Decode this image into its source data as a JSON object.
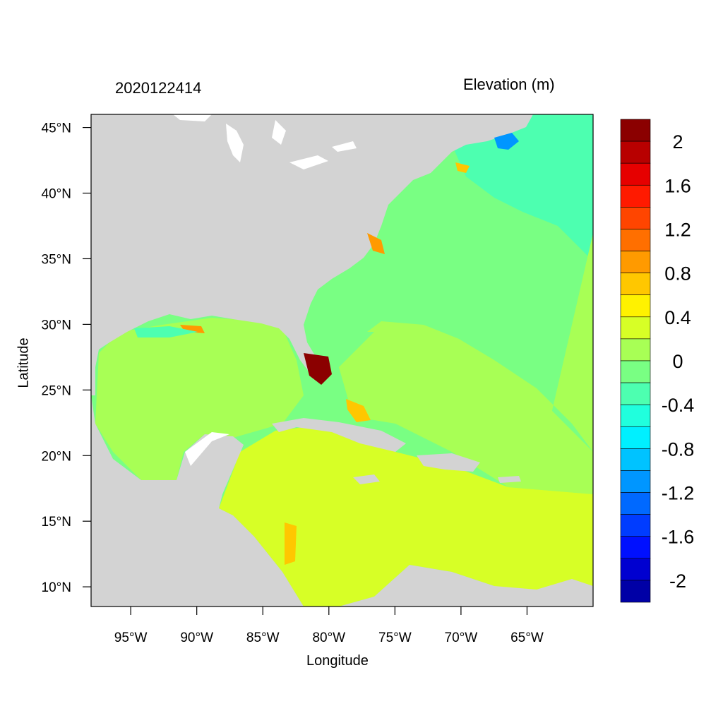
{
  "map": {
    "left_title": "2020122414",
    "right_title": "Elevation (m)",
    "x_axis_title": "Longitude",
    "y_axis_title": "Latitude",
    "lon_range": [
      -98,
      -60
    ],
    "lat_range": [
      8.5,
      46
    ],
    "x_ticks": [
      {
        "value": -95,
        "label": "95°W"
      },
      {
        "value": -90,
        "label": "90°W"
      },
      {
        "value": -85,
        "label": "85°W"
      },
      {
        "value": -80,
        "label": "80°W"
      },
      {
        "value": -75,
        "label": "75°W"
      },
      {
        "value": -70,
        "label": "70°W"
      },
      {
        "value": -65,
        "label": "65°W"
      }
    ],
    "y_ticks": [
      {
        "value": 45,
        "label": "45°N"
      },
      {
        "value": 40,
        "label": "40°N"
      },
      {
        "value": 35,
        "label": "35°N"
      },
      {
        "value": 30,
        "label": "30°N"
      },
      {
        "value": 25,
        "label": "25°N"
      },
      {
        "value": 20,
        "label": "20°N"
      },
      {
        "value": 15,
        "label": "15°N"
      },
      {
        "value": 10,
        "label": "10°N"
      }
    ],
    "land_color": "#d3d3d3"
  },
  "colorbar": {
    "bins_top_to_bottom": [
      "#8b0000",
      "#b80000",
      "#e60000",
      "#ff1a00",
      "#ff4500",
      "#ff6f00",
      "#ff9a00",
      "#ffc700",
      "#fff200",
      "#d7ff26",
      "#a8ff55",
      "#79ff83",
      "#4dffb0",
      "#20ffdd",
      "#00f0ff",
      "#00c3ff",
      "#0096ff",
      "#0069ff",
      "#003cff",
      "#0010ff",
      "#0000d0",
      "#0000a6"
    ],
    "labels": [
      {
        "after_bin": 1,
        "text": "2"
      },
      {
        "after_bin": 3,
        "text": "1.6"
      },
      {
        "after_bin": 5,
        "text": "1.2"
      },
      {
        "after_bin": 7,
        "text": "0.8"
      },
      {
        "after_bin": 9,
        "text": "0.4"
      },
      {
        "after_bin": 11,
        "text": "0"
      },
      {
        "after_bin": 13,
        "text": "-0.4"
      },
      {
        "after_bin": 15,
        "text": "-0.8"
      },
      {
        "after_bin": 17,
        "text": "-1.2"
      },
      {
        "after_bin": 19,
        "text": "-1.6"
      },
      {
        "after_bin": 21,
        "text": "-2"
      }
    ]
  }
}
